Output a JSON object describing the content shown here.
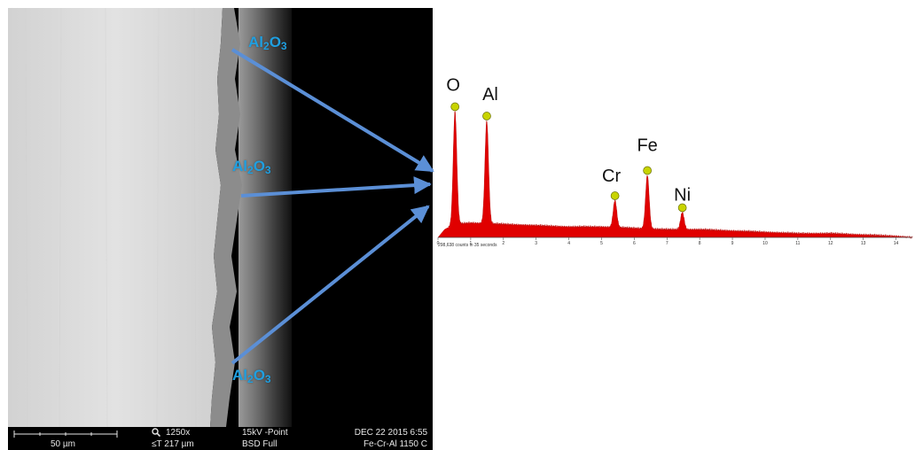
{
  "sem": {
    "scalebar_label": "50 µm",
    "magnification": "1250x",
    "tilt": "≤T 217 µm",
    "voltage": "15kV -Point",
    "detector": "BSD Full",
    "date": "DEC 22 2015 6:55",
    "sample": "Fe-Cr-Al 1150 C",
    "zoom_icon": "magnifier-icon",
    "layer_labels": [
      {
        "base": "Al",
        "sub1": "2",
        "mid": "O",
        "sub2": "3"
      },
      {
        "base": "Al",
        "sub1": "2",
        "mid": "O",
        "sub2": "3"
      },
      {
        "base": "Al",
        "sub1": "2",
        "mid": "O",
        "sub2": "3"
      }
    ]
  },
  "colors": {
    "arrow": "#5b8fd6",
    "label": "#1f9fe0",
    "spectrum_fill": "#e00000",
    "peak_marker": "#c8d400"
  },
  "chart_data": {
    "type": "area",
    "title": "",
    "xlabel": "",
    "ylabel": "",
    "xlim": [
      0,
      14.5
    ],
    "ylim": [
      0,
      100
    ],
    "x_ticks": [
      0,
      1,
      2,
      3,
      4,
      5,
      6,
      7,
      8,
      9,
      10,
      11,
      12,
      13,
      14
    ],
    "footnote": "298,638 counts in 35 seconds",
    "peaks": [
      {
        "element": "O",
        "energy": 0.52,
        "height": 95
      },
      {
        "element": "Al",
        "energy": 1.49,
        "height": 88
      },
      {
        "element": "Cr",
        "energy": 5.41,
        "height": 28
      },
      {
        "element": "Fe",
        "energy": 6.4,
        "height": 47
      },
      {
        "element": "Ni",
        "energy": 7.47,
        "height": 19
      }
    ],
    "background": [
      [
        0.0,
        0
      ],
      [
        0.2,
        6
      ],
      [
        0.5,
        10
      ],
      [
        1.0,
        11
      ],
      [
        2.0,
        10
      ],
      [
        3.0,
        9
      ],
      [
        4.0,
        8
      ],
      [
        5.0,
        8
      ],
      [
        6.0,
        7
      ],
      [
        7.0,
        6
      ],
      [
        8.0,
        6
      ],
      [
        9.0,
        5
      ],
      [
        10.0,
        4
      ],
      [
        11.0,
        3
      ],
      [
        12.0,
        3
      ],
      [
        13.0,
        2
      ],
      [
        14.0,
        1
      ],
      [
        14.5,
        0
      ]
    ]
  }
}
